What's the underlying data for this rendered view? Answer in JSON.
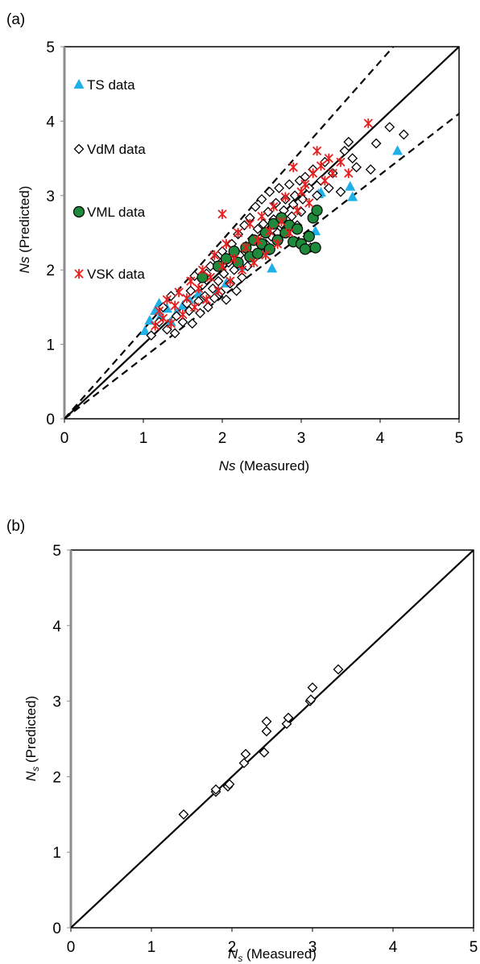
{
  "chart_data": [
    {
      "type": "scatter",
      "panel_label": "(a)",
      "xlabel": "Ns",
      "xlabel_suffix": " (Measured)",
      "ylabel": "Ns",
      "ylabel_suffix": "  (Predicted)",
      "xlim": [
        0,
        5
      ],
      "ylim": [
        0,
        5
      ],
      "xticks": [
        "0",
        "1",
        "2",
        "3",
        "4",
        "5"
      ],
      "yticks": [
        "0",
        "1",
        "2",
        "3",
        "4",
        "5"
      ],
      "grid": false,
      "legend_position": "left, stacked",
      "reference_lines": [
        {
          "style": "solid",
          "color": "#000000",
          "slope": 1.0
        },
        {
          "style": "dashed",
          "color": "#000000",
          "slope": 1.2
        },
        {
          "style": "dashed",
          "color": "#000000",
          "slope": 0.82
        }
      ],
      "series": [
        {
          "name": "TS data",
          "marker": "triangle",
          "color": "#1fb0e8",
          "points": [
            [
              1.02,
              1.18
            ],
            [
              1.08,
              1.32
            ],
            [
              1.15,
              1.45
            ],
            [
              1.2,
              1.55
            ],
            [
              1.22,
              1.38
            ],
            [
              1.3,
              1.48
            ],
            [
              1.35,
              1.3
            ],
            [
              1.42,
              1.42
            ],
            [
              1.5,
              1.52
            ],
            [
              1.58,
              1.6
            ],
            [
              1.7,
              1.68
            ],
            [
              1.95,
              1.72
            ],
            [
              2.05,
              1.82
            ],
            [
              2.25,
              2.05
            ],
            [
              2.45,
              2.4
            ],
            [
              2.55,
              2.25
            ],
            [
              2.63,
              2.02
            ],
            [
              2.72,
              2.45
            ],
            [
              3.18,
              2.52
            ],
            [
              3.22,
              3.02
            ],
            [
              3.25,
              3.04
            ],
            [
              3.62,
              3.12
            ],
            [
              3.65,
              2.98
            ],
            [
              4.22,
              3.6
            ]
          ]
        },
        {
          "name": "VdM data",
          "marker": "diamond",
          "color": "#000000",
          "points": [
            [
              1.1,
              1.12
            ],
            [
              1.2,
              1.3
            ],
            [
              1.25,
              1.5
            ],
            [
              1.3,
              1.2
            ],
            [
              1.35,
              1.65
            ],
            [
              1.4,
              1.15
            ],
            [
              1.42,
              1.38
            ],
            [
              1.5,
              1.3
            ],
            [
              1.55,
              1.55
            ],
            [
              1.58,
              1.45
            ],
            [
              1.6,
              1.72
            ],
            [
              1.62,
              1.28
            ],
            [
              1.65,
              1.92
            ],
            [
              1.7,
              1.58
            ],
            [
              1.72,
              1.42
            ],
            [
              1.75,
              1.8
            ],
            [
              1.78,
              1.65
            ],
            [
              1.8,
              1.95
            ],
            [
              1.82,
              1.5
            ],
            [
              1.85,
              2.05
            ],
            [
              1.88,
              1.75
            ],
            [
              1.9,
              1.62
            ],
            [
              1.92,
              2.15
            ],
            [
              1.95,
              1.85
            ],
            [
              1.98,
              1.7
            ],
            [
              2.0,
              2.25
            ],
            [
              2.02,
              1.95
            ],
            [
              2.05,
              1.6
            ],
            [
              2.08,
              2.1
            ],
            [
              2.1,
              1.82
            ],
            [
              2.12,
              2.35
            ],
            [
              2.15,
              2.0
            ],
            [
              2.18,
              1.72
            ],
            [
              2.2,
              2.48
            ],
            [
              2.22,
              2.2
            ],
            [
              2.25,
              1.9
            ],
            [
              2.28,
              2.6
            ],
            [
              2.3,
              2.32
            ],
            [
              2.32,
              2.05
            ],
            [
              2.35,
              2.7
            ],
            [
              2.38,
              2.42
            ],
            [
              2.4,
              2.15
            ],
            [
              2.42,
              2.85
            ],
            [
              2.45,
              2.55
            ],
            [
              2.48,
              2.25
            ],
            [
              2.5,
              2.95
            ],
            [
              2.52,
              2.62
            ],
            [
              2.55,
              2.35
            ],
            [
              2.58,
              2.78
            ],
            [
              2.6,
              3.05
            ],
            [
              2.62,
              2.45
            ],
            [
              2.65,
              2.68
            ],
            [
              2.68,
              2.9
            ],
            [
              2.7,
              2.5
            ],
            [
              2.72,
              3.1
            ],
            [
              2.75,
              2.62
            ],
            [
              2.78,
              2.8
            ],
            [
              2.8,
              2.95
            ],
            [
              2.82,
              2.55
            ],
            [
              2.85,
              3.15
            ],
            [
              2.88,
              2.72
            ],
            [
              2.9,
              2.88
            ],
            [
              2.92,
              3.0
            ],
            [
              2.95,
              2.6
            ],
            [
              2.98,
              3.2
            ],
            [
              3.0,
              2.78
            ],
            [
              3.02,
              2.95
            ],
            [
              3.05,
              3.25
            ],
            [
              3.08,
              2.45
            ],
            [
              3.1,
              3.1
            ],
            [
              3.12,
              2.3
            ],
            [
              3.15,
              3.35
            ],
            [
              3.2,
              3.0
            ],
            [
              3.25,
              3.2
            ],
            [
              3.3,
              3.45
            ],
            [
              3.35,
              3.1
            ],
            [
              3.4,
              3.3
            ],
            [
              3.5,
              3.05
            ],
            [
              3.55,
              3.6
            ],
            [
              3.6,
              3.72
            ],
            [
              3.65,
              3.5
            ],
            [
              3.7,
              3.38
            ],
            [
              3.88,
              3.35
            ],
            [
              3.95,
              3.7
            ],
            [
              4.12,
              3.92
            ],
            [
              4.3,
              3.82
            ]
          ]
        },
        {
          "name": "VML data",
          "marker": "circle",
          "color": "#1f8a3c",
          "points": [
            [
              1.75,
              1.9
            ],
            [
              1.95,
              2.05
            ],
            [
              2.05,
              2.15
            ],
            [
              2.15,
              2.25
            ],
            [
              2.2,
              2.1
            ],
            [
              2.3,
              2.3
            ],
            [
              2.35,
              2.18
            ],
            [
              2.4,
              2.4
            ],
            [
              2.45,
              2.22
            ],
            [
              2.5,
              2.35
            ],
            [
              2.55,
              2.5
            ],
            [
              2.6,
              2.28
            ],
            [
              2.65,
              2.62
            ],
            [
              2.7,
              2.4
            ],
            [
              2.75,
              2.7
            ],
            [
              2.8,
              2.5
            ],
            [
              2.85,
              2.6
            ],
            [
              2.9,
              2.38
            ],
            [
              2.95,
              2.55
            ],
            [
              3.0,
              2.35
            ],
            [
              3.05,
              2.28
            ],
            [
              3.1,
              2.45
            ],
            [
              3.15,
              2.7
            ],
            [
              3.2,
              2.8
            ],
            [
              3.18,
              2.3
            ]
          ]
        },
        {
          "name": "VSK data",
          "marker": "asterisk",
          "color": "#e81f1f",
          "points": [
            [
              1.15,
              1.25
            ],
            [
              1.2,
              1.45
            ],
            [
              1.25,
              1.35
            ],
            [
              1.3,
              1.6
            ],
            [
              1.35,
              1.28
            ],
            [
              1.4,
              1.52
            ],
            [
              1.45,
              1.7
            ],
            [
              1.5,
              1.4
            ],
            [
              1.55,
              1.62
            ],
            [
              1.6,
              1.85
            ],
            [
              1.65,
              1.5
            ],
            [
              1.7,
              1.75
            ],
            [
              1.75,
              2.0
            ],
            [
              1.8,
              1.6
            ],
            [
              1.85,
              1.9
            ],
            [
              1.9,
              2.2
            ],
            [
              1.95,
              1.72
            ],
            [
              2.0,
              2.05
            ],
            [
              2.0,
              2.75
            ],
            [
              2.05,
              2.35
            ],
            [
              2.1,
              1.85
            ],
            [
              2.15,
              2.15
            ],
            [
              2.2,
              2.5
            ],
            [
              2.25,
              2.0
            ],
            [
              2.3,
              2.3
            ],
            [
              2.35,
              2.62
            ],
            [
              2.4,
              2.1
            ],
            [
              2.45,
              2.4
            ],
            [
              2.5,
              2.72
            ],
            [
              2.55,
              2.2
            ],
            [
              2.6,
              2.52
            ],
            [
              2.65,
              2.85
            ],
            [
              2.7,
              2.35
            ],
            [
              2.75,
              2.65
            ],
            [
              2.8,
              2.98
            ],
            [
              2.85,
              2.5
            ],
            [
              2.9,
              3.38
            ],
            [
              2.95,
              2.8
            ],
            [
              3.0,
              3.05
            ],
            [
              3.05,
              3.15
            ],
            [
              3.1,
              2.9
            ],
            [
              3.15,
              3.3
            ],
            [
              3.2,
              3.6
            ],
            [
              3.25,
              3.4
            ],
            [
              3.3,
              3.2
            ],
            [
              3.35,
              3.5
            ],
            [
              3.4,
              3.3
            ],
            [
              3.5,
              3.45
            ],
            [
              3.6,
              3.3
            ],
            [
              3.85,
              3.97
            ]
          ]
        }
      ]
    },
    {
      "type": "scatter",
      "panel_label": "(b)",
      "xlabel": "N",
      "xlabel_sub": "s",
      "xlabel_suffix": " (Measured)",
      "ylabel": "N",
      "ylabel_sub": "s",
      "ylabel_suffix": "  (Predicted)",
      "xlim": [
        0,
        5
      ],
      "ylim": [
        0,
        5
      ],
      "xticks": [
        "0",
        "1",
        "2",
        "3",
        "4",
        "5"
      ],
      "yticks": [
        "0",
        "1",
        "2",
        "3",
        "4",
        "5"
      ],
      "grid": false,
      "reference_lines": [
        {
          "style": "solid",
          "color": "#000000",
          "slope": 1.0
        }
      ],
      "series": [
        {
          "marker": "diamond",
          "color": "#000000",
          "points": [
            [
              1.4,
              1.5
            ],
            [
              1.8,
              1.8
            ],
            [
              1.8,
              1.83
            ],
            [
              1.95,
              1.87
            ],
            [
              1.97,
              1.9
            ],
            [
              2.15,
              2.18
            ],
            [
              2.17,
              2.3
            ],
            [
              2.4,
              2.32
            ],
            [
              2.43,
              2.6
            ],
            [
              2.43,
              2.73
            ],
            [
              2.68,
              2.7
            ],
            [
              2.7,
              2.78
            ],
            [
              2.97,
              3.0
            ],
            [
              2.98,
              3.02
            ],
            [
              3.0,
              3.18
            ],
            [
              3.32,
              3.42
            ]
          ]
        }
      ]
    }
  ]
}
